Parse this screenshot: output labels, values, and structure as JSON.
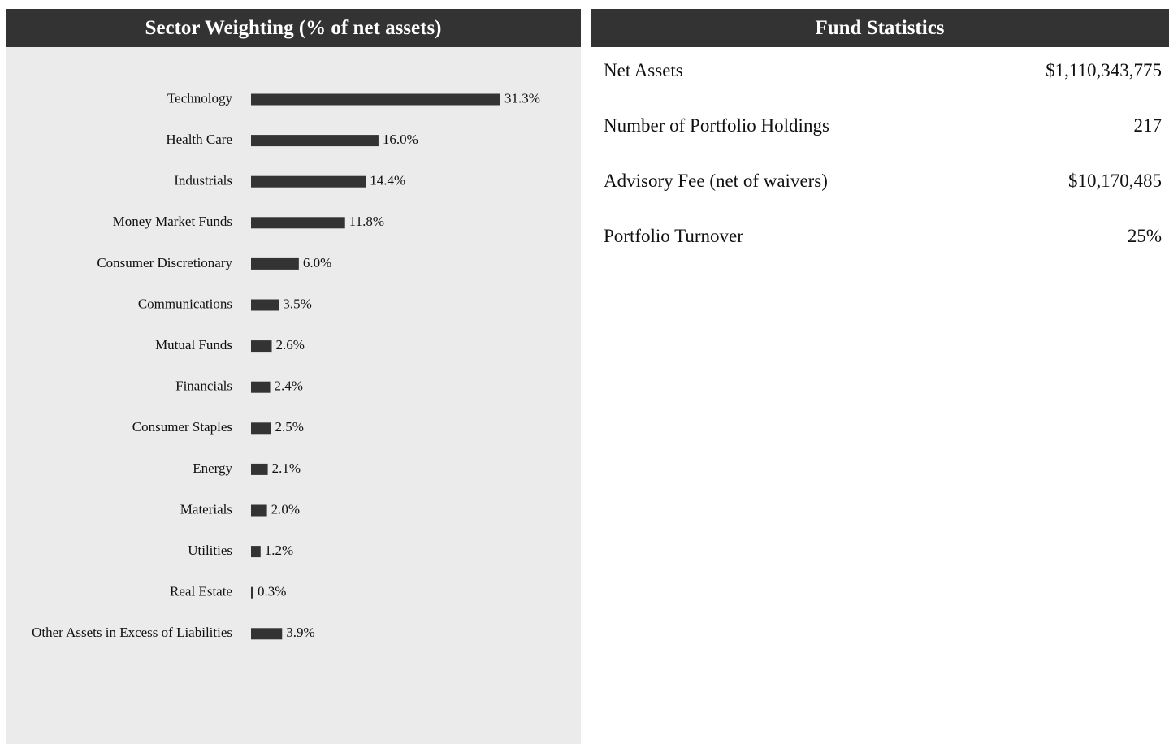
{
  "chart_data": {
    "type": "bar",
    "orientation": "horizontal",
    "title": "Sector Weighting (% of net assets)",
    "categories": [
      "Technology",
      "Health Care",
      "Industrials",
      "Money Market Funds",
      "Consumer Discretionary",
      "Communications",
      "Mutual Funds",
      "Financials",
      "Consumer Staples",
      "Energy",
      "Materials",
      "Utilities",
      "Real Estate",
      "Other Assets in Excess of Liabilities"
    ],
    "values": [
      31.3,
      16.0,
      14.4,
      11.8,
      6.0,
      3.5,
      2.6,
      2.4,
      2.5,
      2.1,
      2.0,
      1.2,
      0.3,
      3.9
    ],
    "value_labels": [
      "31.3%",
      "16.0%",
      "14.4%",
      "11.8%",
      "6.0%",
      "3.5%",
      "2.6%",
      "2.4%",
      "2.5%",
      "2.1%",
      "2.0%",
      "1.2%",
      "0.3%",
      "3.9%"
    ],
    "color": "#333333"
  },
  "fund_statistics": {
    "title": "Fund Statistics",
    "rows": [
      [
        "Net Assets",
        "$1,110,343,775"
      ],
      [
        "Number of Portfolio Holdings",
        "217"
      ],
      [
        "Advisory Fee (net of waivers)",
        "$10,170,485"
      ],
      [
        "Portfolio Turnover",
        "25%"
      ]
    ]
  }
}
